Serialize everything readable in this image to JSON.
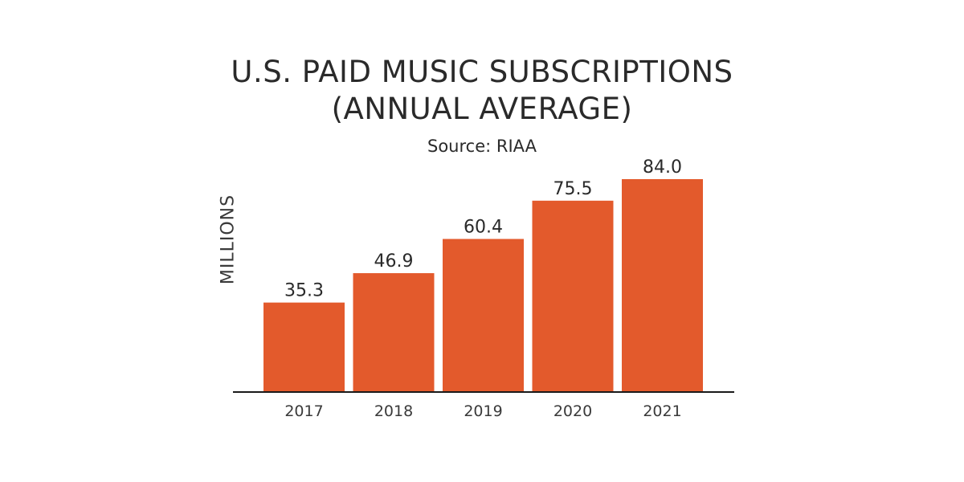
{
  "chart_data": {
    "type": "bar",
    "title_lines": [
      "U.S. PAID MUSIC SUBSCRIPTIONS",
      "(ANNUAL AVERAGE)"
    ],
    "subtitle": "Source: RIAA",
    "ylabel": "MILLIONS",
    "xlabel": "",
    "categories": [
      "2017",
      "2018",
      "2019",
      "2020",
      "2021"
    ],
    "values": [
      35.3,
      46.9,
      60.4,
      75.5,
      84.0
    ],
    "data_labels": [
      "35.3",
      "46.9",
      "60.4",
      "75.5",
      "84.0"
    ],
    "ylim": [
      0,
      90
    ],
    "grid": false,
    "bar_color": "#e35a2c",
    "axis_color": "#1a1a1a"
  }
}
